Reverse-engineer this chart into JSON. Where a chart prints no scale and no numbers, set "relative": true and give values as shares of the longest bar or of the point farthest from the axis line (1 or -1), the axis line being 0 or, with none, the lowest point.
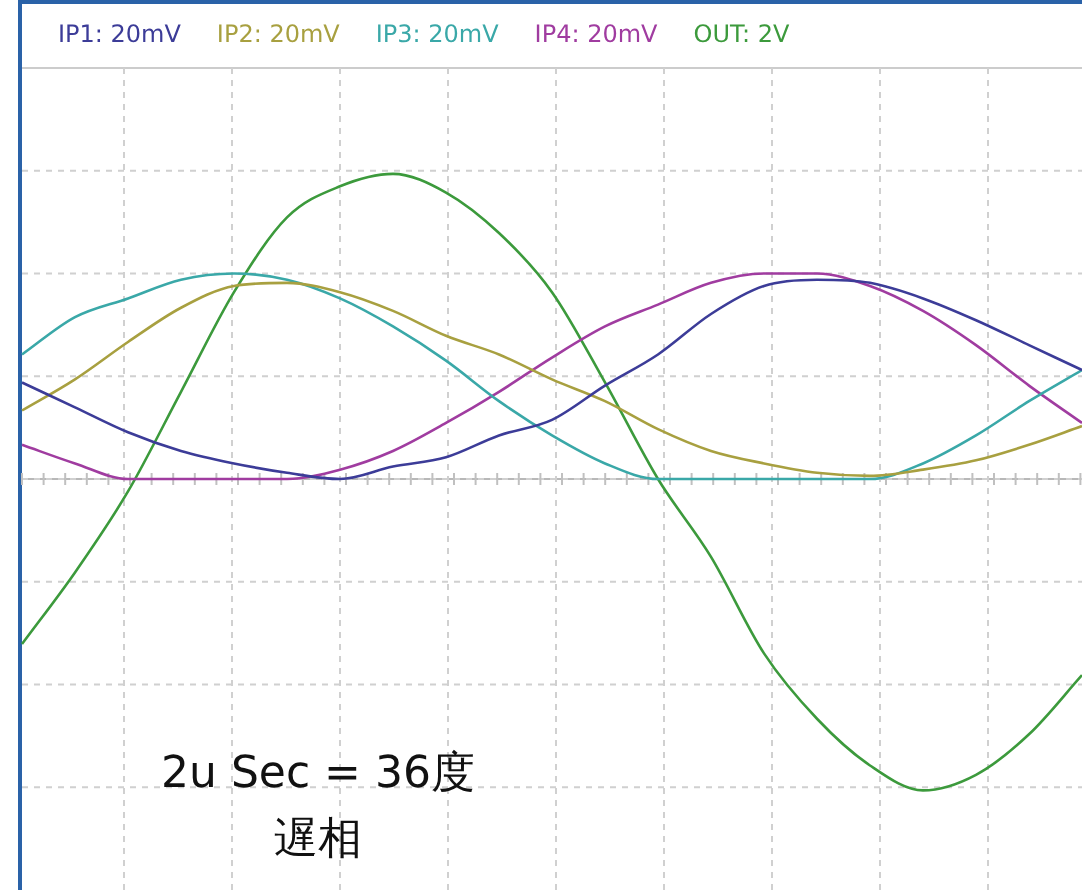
{
  "chart_data": {
    "type": "line",
    "relative": true,
    "legend": "top left",
    "grid": true,
    "marker": "none",
    "line_style": "solid",
    "categories": [
      null,
      null,
      null,
      null,
      null,
      null,
      null,
      null,
      null,
      null,
      null,
      null,
      null,
      null,
      null,
      null,
      null,
      null,
      null,
      null,
      null
    ],
    "series": [
      {
        "name": "IP1: 20mV",
        "color": "#3c3c98",
        "values": [
          0.31,
          0.23,
          0.15,
          0.09,
          0.05,
          0.02,
          0,
          0.04,
          0.07,
          0.14,
          0.19,
          0.3,
          0.4,
          0.53,
          0.62,
          0.64,
          0.63,
          0.58,
          0.51,
          0.43,
          0.35
        ]
      },
      {
        "name": "IP2: 20mV",
        "color": "#a8a040",
        "values": [
          0.22,
          0.32,
          0.44,
          0.55,
          0.62,
          0.63,
          0.6,
          0.54,
          0.46,
          0.4,
          0.32,
          0.25,
          0.16,
          0.09,
          0.05,
          0.02,
          0.01,
          0.03,
          0.06,
          0.11,
          0.17
        ]
      },
      {
        "name": "IP3: 20mV",
        "color": "#3aa8a8",
        "values": [
          0.4,
          0.52,
          0.58,
          0.64,
          0.66,
          0.64,
          0.58,
          0.49,
          0.38,
          0.25,
          0.14,
          0.05,
          0,
          0,
          0,
          0,
          0,
          0.05,
          0.14,
          0.25,
          0.35
        ]
      },
      {
        "name": "IP4: 20mV",
        "color": "#a03ca0",
        "values": [
          0.11,
          0.05,
          0,
          0,
          0,
          0,
          0.03,
          0.09,
          0.18,
          0.28,
          0.39,
          0.49,
          0.56,
          0.63,
          0.66,
          0.66,
          0.62,
          0.54,
          0.43,
          0.3,
          0.18
        ]
      },
      {
        "name": "OUT: 2V",
        "color": "#3c9a3c",
        "values": [
          -0.53,
          -0.3,
          -0.04,
          0.28,
          0.6,
          0.84,
          0.94,
          0.98,
          0.92,
          0.79,
          0.6,
          0.31,
          0,
          -0.25,
          -0.56,
          -0.77,
          -0.92,
          -1,
          -0.95,
          -0.82,
          -0.63
        ]
      }
    ],
    "annotations": [
      "2u Sec = 36度",
      "遅相"
    ]
  }
}
